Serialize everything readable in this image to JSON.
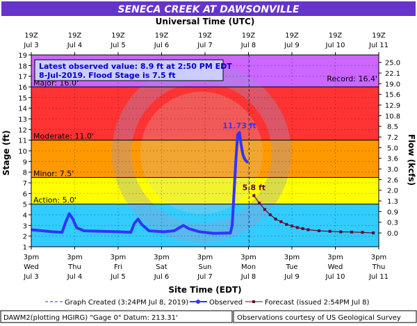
{
  "chart_data": {
    "type": "line",
    "title": "SENECA CREEK AT DAWSONVILLE",
    "top_axis_label": "Universal Time (UTC)",
    "xlabel": "Site Time (EDT)",
    "ylabel": "Stage (ft)",
    "ylabel_right": "Flow (kcfs)",
    "ylim": [
      1,
      19
    ],
    "xlim": [
      "2019-07-03 15:00",
      "2019-07-11 15:00"
    ],
    "y_ticks": [
      1,
      2,
      3,
      4,
      5,
      6,
      7,
      8,
      9,
      10,
      11,
      12,
      13,
      14,
      15,
      16,
      17,
      18,
      19
    ],
    "right_ticks": [
      {
        "stage": 2.3,
        "label": "0.0"
      },
      {
        "stage": 3.3,
        "label": "0.3"
      },
      {
        "stage": 4.3,
        "label": "0.9"
      },
      {
        "stage": 5.3,
        "label": "1.3"
      },
      {
        "stage": 6.3,
        "label": "2.0"
      },
      {
        "stage": 7.3,
        "label": "2.6"
      },
      {
        "stage": 8.3,
        "label": "3.0"
      },
      {
        "stage": 9.3,
        "label": "3.6"
      },
      {
        "stage": 10.3,
        "label": "5.0"
      },
      {
        "stage": 11.3,
        "label": "7.2"
      },
      {
        "stage": 12.3,
        "label": "8.5"
      },
      {
        "stage": 13.3,
        "label": "10.8"
      },
      {
        "stage": 14.3,
        "label": "12.9"
      },
      {
        "stage": 15.3,
        "label": "15.6"
      },
      {
        "stage": 16.3,
        "label": "19.0"
      },
      {
        "stage": 17.3,
        "label": "22.1"
      },
      {
        "stage": 18.3,
        "label": "25.0"
      }
    ],
    "bottom_ticks": [
      {
        "x": "2019-07-03 15:00",
        "l1": "3pm",
        "l2": "Wed",
        "l3": "Jul 3"
      },
      {
        "x": "2019-07-04 15:00",
        "l1": "3pm",
        "l2": "Thu",
        "l3": "Jul 4"
      },
      {
        "x": "2019-07-05 15:00",
        "l1": "3pm",
        "l2": "Fri",
        "l3": "Jul 5"
      },
      {
        "x": "2019-07-06 15:00",
        "l1": "3pm",
        "l2": "Sat",
        "l3": "Jul 6"
      },
      {
        "x": "2019-07-07 15:00",
        "l1": "3pm",
        "l2": "Sun",
        "l3": "Jul 7"
      },
      {
        "x": "2019-07-08 15:00",
        "l1": "3pm",
        "l2": "Mon",
        "l3": "Jul 8"
      },
      {
        "x": "2019-07-09 15:00",
        "l1": "3pm",
        "l2": "Tue",
        "l3": "Jul 9"
      },
      {
        "x": "2019-07-10 15:00",
        "l1": "3pm",
        "l2": "Wed",
        "l3": "Jul 10"
      },
      {
        "x": "2019-07-11 15:00",
        "l1": "3pm",
        "l2": "Thu",
        "l3": "Jul 11"
      }
    ],
    "top_ticks": [
      {
        "x": "2019-07-03 15:00",
        "l1": "19Z",
        "l2": "Jul  3"
      },
      {
        "x": "2019-07-04 15:00",
        "l1": "19Z",
        "l2": "Jul  4"
      },
      {
        "x": "2019-07-05 15:00",
        "l1": "19Z",
        "l2": "Jul  5"
      },
      {
        "x": "2019-07-06 15:00",
        "l1": "19Z",
        "l2": "Jul  6"
      },
      {
        "x": "2019-07-07 15:00",
        "l1": "19Z",
        "l2": "Jul  7"
      },
      {
        "x": "2019-07-08 15:00",
        "l1": "19Z",
        "l2": "Jul  8"
      },
      {
        "x": "2019-07-09 15:00",
        "l1": "19Z",
        "l2": "Jul  9"
      },
      {
        "x": "2019-07-10 15:00",
        "l1": "19Z",
        "l2": "Jul 10"
      },
      {
        "x": "2019-07-11 15:00",
        "l1": "19Z",
        "l2": "Jul 11"
      }
    ],
    "bands": [
      {
        "name": "above-major",
        "from": 16,
        "to": 19,
        "color": "#cc66ff"
      },
      {
        "name": "major",
        "from": 11,
        "to": 16,
        "color": "#ff3333"
      },
      {
        "name": "moderate",
        "from": 7.5,
        "to": 11,
        "color": "#ff9900"
      },
      {
        "name": "minor",
        "from": 5,
        "to": 7.5,
        "color": "#ffff00"
      },
      {
        "name": "action",
        "from": 1,
        "to": 5,
        "color": "#33ccff"
      }
    ],
    "thresholds": [
      {
        "name": "major",
        "label": "Major: 16.0'",
        "value": 16
      },
      {
        "name": "moderate",
        "label": "Moderate: 11.0'",
        "value": 11
      },
      {
        "name": "minor",
        "label": "Minor: 7.5'",
        "value": 7.5
      },
      {
        "name": "action",
        "label": "Action: 5.0'",
        "value": 5
      },
      {
        "name": "record",
        "label": "Record: 16.4'",
        "value": 16.4
      }
    ],
    "info_box": {
      "line1": "Latest observed value: 8.9 ft at 2:50 PM EDT",
      "line2": "8-Jul-2019.  Flood Stage is 7.5 ft"
    },
    "graph_created_x": "2019-07-08 15:24",
    "observed_peak_label": "11.73 ft",
    "forecast_peak_label": "5.8 ft",
    "series": [
      {
        "name": "Observed",
        "color": "#3333ff",
        "points": [
          [
            "2019-07-03 15:00",
            2.6
          ],
          [
            "2019-07-03 21:00",
            2.5
          ],
          [
            "2019-07-04 03:00",
            2.4
          ],
          [
            "2019-07-04 08:00",
            2.35
          ],
          [
            "2019-07-04 10:00",
            3.3
          ],
          [
            "2019-07-04 12:00",
            4.1
          ],
          [
            "2019-07-04 14:00",
            3.6
          ],
          [
            "2019-07-04 16:00",
            2.8
          ],
          [
            "2019-07-04 20:00",
            2.5
          ],
          [
            "2019-07-05 06:00",
            2.45
          ],
          [
            "2019-07-05 16:00",
            2.4
          ],
          [
            "2019-07-05 22:00",
            2.35
          ],
          [
            "2019-07-06 00:00",
            3.2
          ],
          [
            "2019-07-06 02:00",
            3.6
          ],
          [
            "2019-07-06 04:00",
            3.1
          ],
          [
            "2019-07-06 08:00",
            2.5
          ],
          [
            "2019-07-06 16:00",
            2.4
          ],
          [
            "2019-07-06 22:00",
            2.5
          ],
          [
            "2019-07-07 03:00",
            3.0
          ],
          [
            "2019-07-07 06:00",
            2.7
          ],
          [
            "2019-07-07 12:00",
            2.4
          ],
          [
            "2019-07-07 20:00",
            2.25
          ],
          [
            "2019-07-08 05:00",
            2.3
          ],
          [
            "2019-07-08 06:00",
            3.0
          ],
          [
            "2019-07-08 07:00",
            6.0
          ],
          [
            "2019-07-08 08:00",
            9.0
          ],
          [
            "2019-07-08 09:00",
            11.5
          ],
          [
            "2019-07-08 10:00",
            11.73
          ],
          [
            "2019-07-08 11:00",
            10.5
          ],
          [
            "2019-07-08 12:00",
            9.6
          ],
          [
            "2019-07-08 13:00",
            9.2
          ],
          [
            "2019-07-08 14:00",
            9.0
          ],
          [
            "2019-07-08 14:50",
            8.9
          ]
        ]
      },
      {
        "name": "Forecast",
        "color": "#660033",
        "points": [
          [
            "2019-07-08 18:00",
            5.8
          ],
          [
            "2019-07-08 21:00",
            5.1
          ],
          [
            "2019-07-09 00:00",
            4.5
          ],
          [
            "2019-07-09 03:00",
            4.0
          ],
          [
            "2019-07-09 06:00",
            3.6
          ],
          [
            "2019-07-09 09:00",
            3.35
          ],
          [
            "2019-07-09 12:00",
            3.1
          ],
          [
            "2019-07-09 15:00",
            2.95
          ],
          [
            "2019-07-09 18:00",
            2.8
          ],
          [
            "2019-07-09 21:00",
            2.7
          ],
          [
            "2019-07-10 00:00",
            2.6
          ],
          [
            "2019-07-10 06:00",
            2.5
          ],
          [
            "2019-07-10 12:00",
            2.45
          ],
          [
            "2019-07-10 18:00",
            2.4
          ],
          [
            "2019-07-11 00:00",
            2.38
          ],
          [
            "2019-07-11 06:00",
            2.35
          ],
          [
            "2019-07-11 12:00",
            2.3
          ]
        ]
      }
    ],
    "legend": {
      "graph_created": "Graph Created (3:24PM Jul 8, 2019)",
      "observed": "Observed",
      "forecast": "Forecast (issued 2:54PM Jul 8)"
    },
    "footer_left": "DAWM2(plotting HGIRG) \"Gage 0\" Datum: 213.31'",
    "footer_right": "Observations courtesy of US Geological Survey"
  }
}
